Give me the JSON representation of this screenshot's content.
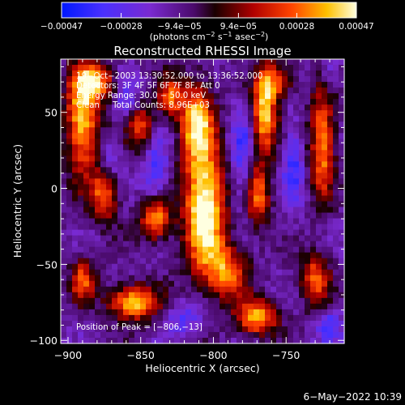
{
  "chart_data": {
    "type": "heatmap",
    "title": "Reconstructed RHESSI Image",
    "xlabel": "Heliocentric X (arcsec)",
    "ylabel": "Heliocentric Y (arcsec)",
    "xlim": [
      -905,
      -710
    ],
    "ylim": [
      -102,
      85
    ],
    "x_ticks": [
      -900,
      -850,
      -800,
      -750
    ],
    "x_tick_labels": [
      "−900",
      "−850",
      "−800",
      "−750"
    ],
    "y_ticks": [
      50,
      0,
      -50,
      -100
    ],
    "y_tick_labels": [
      "50",
      "0",
      "−50",
      "−100"
    ],
    "grid": false,
    "colorbar": {
      "ticks": [
        -0.00047,
        -0.00028,
        -9.4e-05,
        9.4e-05,
        0.00028,
        0.00047
      ],
      "tick_labels": [
        "−0.00047",
        "−0.00028",
        "−9.4e−05",
        "9.4e−05",
        "0.00028",
        "0.00047"
      ],
      "range": [
        -0.00047,
        0.00047
      ],
      "colormap": "blue-purple-red-yellow-white",
      "unit_text": "(photons cm",
      "unit_sup1": "−2",
      "unit_mid": " s",
      "unit_sup2": "−1",
      "unit_text2": " asec",
      "unit_sup3": "−2",
      "unit_close": ")"
    },
    "annotations": {
      "time_range": "19−Oct−2003 13:30:52.000 to 13:36:52.000",
      "detectors": "Detectors: 3F 4F 5F 6F 7F 8F, Att 0",
      "energy_range": "Energy Range: 30.0 − 50.0 keV",
      "clean": "Clean     Total Counts: 8.96E+03",
      "peak": "Position of Peak = [−806,−13]"
    },
    "peak": {
      "x": -806,
      "y": -13
    },
    "sources": [
      {
        "x": -806,
        "y": -13,
        "sx": 10,
        "sy": 30,
        "a": 1.0
      },
      {
        "x": -812,
        "y": 45,
        "sx": 8,
        "sy": 18,
        "a": 0.75
      },
      {
        "x": -765,
        "y": 50,
        "sx": 6,
        "sy": 20,
        "a": 0.8
      },
      {
        "x": -770,
        "y": -5,
        "sx": 6,
        "sy": 15,
        "a": 0.6
      },
      {
        "x": -890,
        "y": 45,
        "sx": 8,
        "sy": 25,
        "a": 0.8
      },
      {
        "x": -875,
        "y": -5,
        "sx": 7,
        "sy": 12,
        "a": 0.6
      },
      {
        "x": -840,
        "y": -20,
        "sx": 7,
        "sy": 10,
        "a": 0.8
      },
      {
        "x": -850,
        "y": 40,
        "sx": 7,
        "sy": 10,
        "a": 0.55
      },
      {
        "x": -855,
        "y": -75,
        "sx": 12,
        "sy": 8,
        "a": 0.8
      },
      {
        "x": -790,
        "y": -55,
        "sx": 10,
        "sy": 12,
        "a": 0.6
      },
      {
        "x": -770,
        "y": -85,
        "sx": 10,
        "sy": 8,
        "a": 0.75
      },
      {
        "x": -725,
        "y": 30,
        "sx": 6,
        "sy": 25,
        "a": 0.7
      },
      {
        "x": -730,
        "y": -60,
        "sx": 7,
        "sy": 12,
        "a": 0.6
      },
      {
        "x": -830,
        "y": 60,
        "sx": 6,
        "sy": 10,
        "a": 0.5
      },
      {
        "x": -890,
        "y": -60,
        "sx": 6,
        "sy": 10,
        "a": 0.55
      },
      {
        "x": -880,
        "y": 70,
        "sx": 10,
        "sy": 8,
        "a": 0.6
      },
      {
        "x": -755,
        "y": 70,
        "sx": 8,
        "sy": 8,
        "a": 0.5
      }
    ],
    "negatives": [
      {
        "x": -840,
        "y": 10,
        "sx": 6,
        "sy": 20,
        "a": 0.7
      },
      {
        "x": -780,
        "y": 20,
        "sx": 6,
        "sy": 25,
        "a": 0.7
      },
      {
        "x": -745,
        "y": 15,
        "sx": 5,
        "sy": 20,
        "a": 0.7
      },
      {
        "x": -860,
        "y": 60,
        "sx": 5,
        "sy": 12,
        "a": 0.6
      },
      {
        "x": -820,
        "y": -85,
        "sx": 10,
        "sy": 8,
        "a": 0.6
      },
      {
        "x": -720,
        "y": -90,
        "sx": 6,
        "sy": 8,
        "a": 0.7
      },
      {
        "x": -870,
        "y": 20,
        "sx": 5,
        "sy": 8,
        "a": 0.5
      },
      {
        "x": -720,
        "y": 75,
        "sx": 5,
        "sy": 8,
        "a": 0.5
      }
    ]
  },
  "footer": {
    "timestamp": "6−May−2022 10:39"
  }
}
